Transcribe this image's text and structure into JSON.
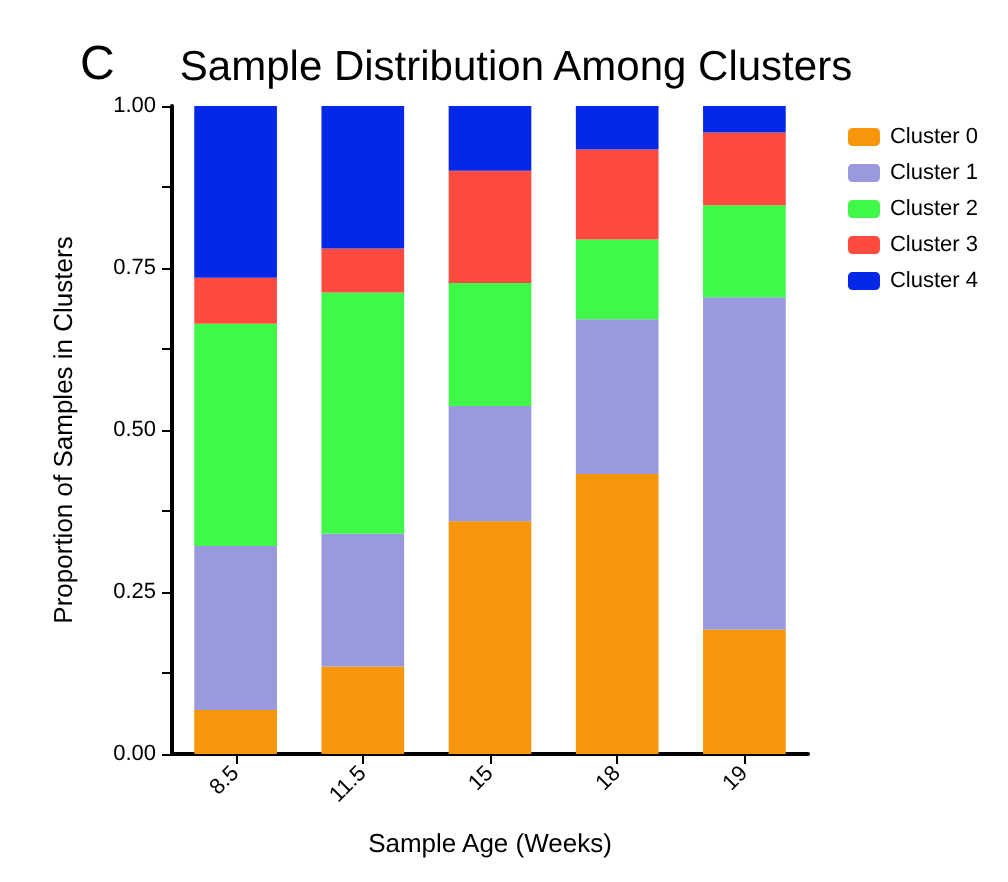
{
  "chart_data": {
    "type": "bar",
    "title": "Sample Distribution Among Clusters",
    "annotations": [
      "C"
    ],
    "xlabel": "Sample Age (Weeks)",
    "ylabel": "Proportion of Samples in Clusters",
    "categories": [
      "8.5",
      "11.5",
      "15",
      "18",
      "19"
    ],
    "stacked": true,
    "series": [
      {
        "name": "Cluster 0",
        "color": "#f7960a",
        "values": [
          0.068,
          0.135,
          0.359,
          0.432,
          0.192
        ]
      },
      {
        "name": "Cluster 1",
        "color": "#9999dd",
        "values": [
          0.253,
          0.205,
          0.178,
          0.239,
          0.513
        ]
      },
      {
        "name": "Cluster 2",
        "color": "#40f848",
        "values": [
          0.343,
          0.372,
          0.19,
          0.123,
          0.142
        ]
      },
      {
        "name": "Cluster 3",
        "color": "#ff4a40",
        "values": [
          0.071,
          0.068,
          0.173,
          0.139,
          0.112
        ]
      },
      {
        "name": "Cluster 4",
        "color": "#0528e8",
        "values": [
          0.265,
          0.22,
          0.1,
          0.067,
          0.041
        ]
      }
    ],
    "ylim": [
      0,
      1
    ],
    "yticks": [
      {
        "value": 0,
        "label": "0.00"
      },
      {
        "value": 0.125,
        "label": null
      },
      {
        "value": 0.25,
        "label": "0.25"
      },
      {
        "value": 0.375,
        "label": null
      },
      {
        "value": 0.5,
        "label": "0.50"
      },
      {
        "value": 0.625,
        "label": null
      },
      {
        "value": 0.75,
        "label": "0.75"
      },
      {
        "value": 0.875,
        "label": null
      },
      {
        "value": 1,
        "label": "1.00"
      }
    ],
    "grid": false,
    "legend": "top right"
  }
}
